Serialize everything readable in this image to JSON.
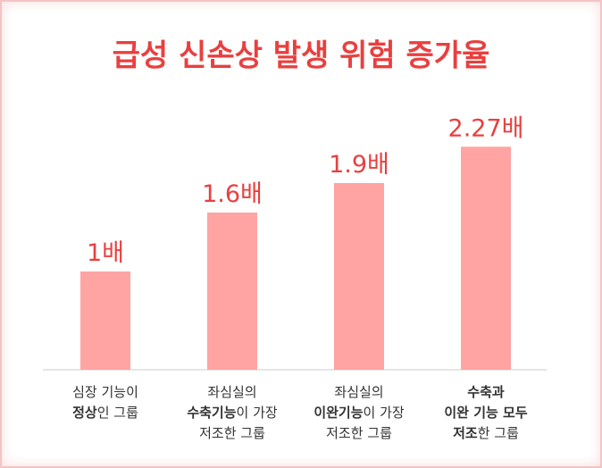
{
  "chart_data": {
    "type": "bar",
    "title": "급성 신손상 발생 위험 증가율",
    "categories": [
      [
        [
          {
            "text": "심장 기능이"
          }
        ],
        [
          {
            "text": "정상",
            "bold": true
          },
          {
            "text": "인 그룹"
          }
        ]
      ],
      [
        [
          {
            "text": "좌심실의"
          }
        ],
        [
          {
            "text": "수축기능",
            "bold": true
          },
          {
            "text": "이 가장"
          }
        ],
        [
          {
            "text": "저조한 그룹"
          }
        ]
      ],
      [
        [
          {
            "text": "좌심실의"
          }
        ],
        [
          {
            "text": "이완기능",
            "bold": true
          },
          {
            "text": "이 가장"
          }
        ],
        [
          {
            "text": "저조한 그룹"
          }
        ]
      ],
      [
        [
          {
            "text": "수축과",
            "bold": true
          }
        ],
        [
          {
            "text": "이완 기능 모두",
            "bold": true
          }
        ],
        [
          {
            "text": "저조",
            "bold": true
          },
          {
            "text": "한 그룹"
          }
        ]
      ]
    ],
    "values": [
      1,
      1.6,
      1.9,
      2.27
    ],
    "value_labels": [
      "1배",
      "1.6배",
      "1.9배",
      "2.27배"
    ],
    "color": "#ffa3a3",
    "value_label_color": "#e8403f"
  }
}
